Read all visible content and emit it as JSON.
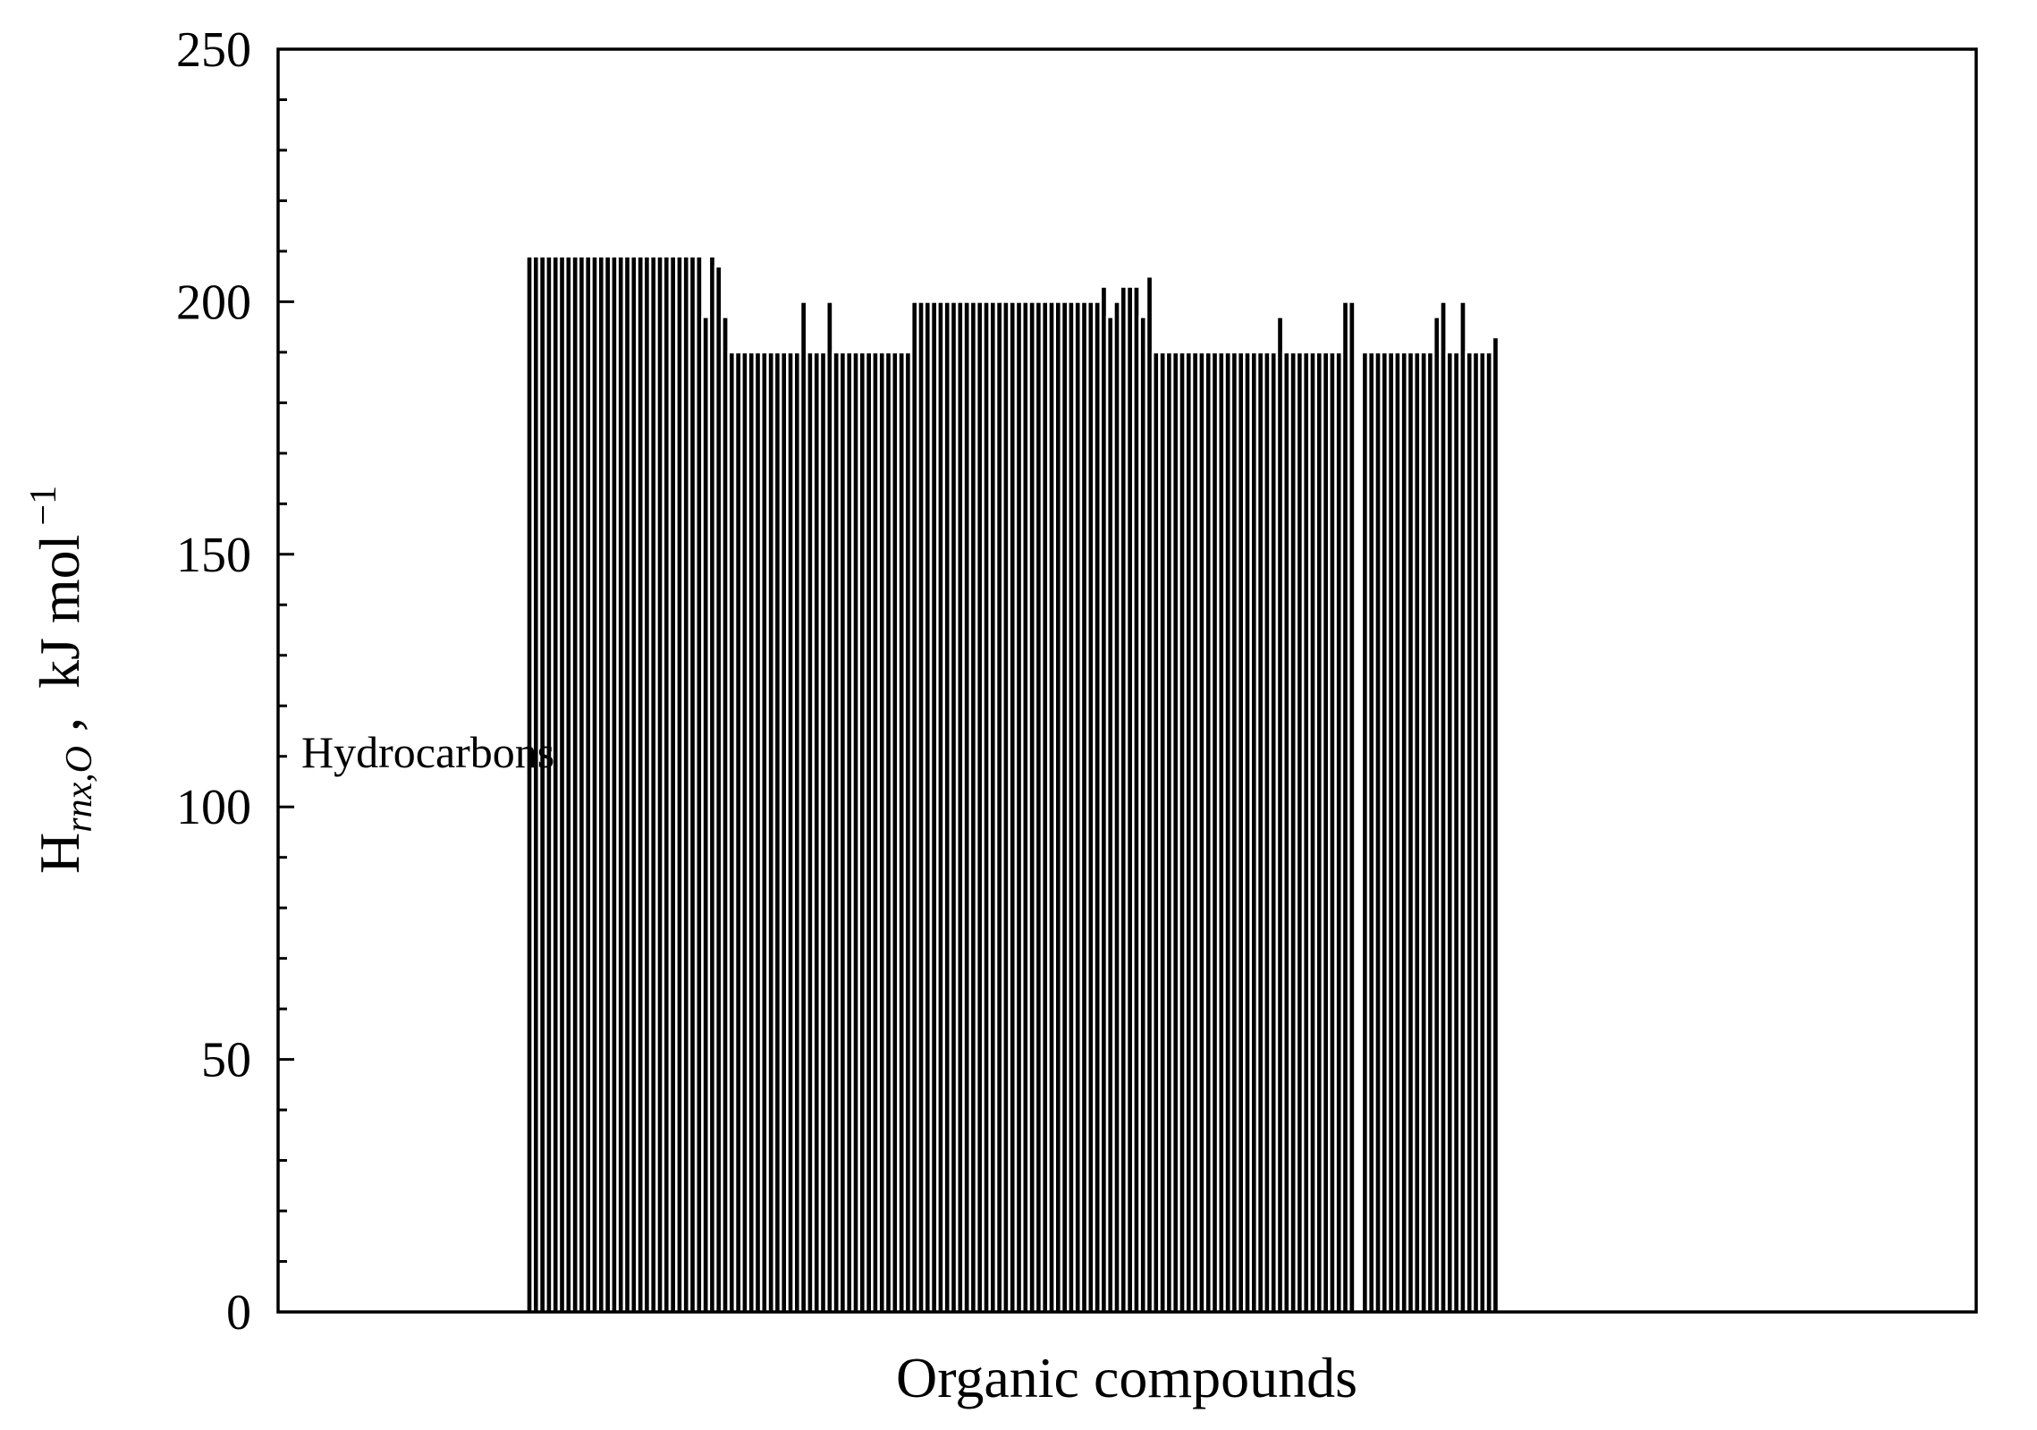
{
  "chart_data": {
    "type": "bar",
    "title": "",
    "xlabel": "Organic compounds",
    "ylabel": {
      "base": "H",
      "subscript": "rnx,O",
      "separator": " ,  ",
      "unit": "kJ mol",
      "superscript": "−1"
    },
    "annotation": "Hydrocarbons",
    "ylim": [
      0,
      250
    ],
    "yticks": [
      "0",
      "50",
      "100",
      "150",
      "200",
      "250"
    ],
    "grid": false,
    "categories_shown": false,
    "leading_empty_slots": 38,
    "series": [
      {
        "values": [
          209,
          209,
          209,
          209,
          209,
          209,
          209,
          209,
          209,
          209,
          209,
          209,
          209,
          209,
          209,
          209,
          209,
          209,
          209,
          209,
          209,
          209,
          209,
          209,
          209,
          209,
          209,
          197,
          209,
          207,
          197,
          190,
          190,
          190,
          190,
          190,
          190,
          190,
          190,
          190,
          190,
          190,
          200,
          190,
          190,
          190,
          200,
          190,
          190,
          190,
          190,
          190,
          190,
          190,
          190,
          190,
          190,
          190,
          190,
          200,
          200,
          200,
          200,
          200,
          200,
          200,
          200,
          200,
          200,
          200,
          200,
          200,
          200,
          200,
          200,
          200,
          200,
          200,
          200,
          200,
          200,
          200,
          200,
          200,
          200,
          200,
          200,
          200,
          203,
          197,
          200,
          203,
          203,
          203,
          197,
          205,
          190,
          190,
          190,
          190,
          190,
          190,
          190,
          190,
          190,
          190,
          190,
          190,
          190,
          190,
          190,
          190,
          190,
          190,
          190,
          197,
          190,
          190,
          190,
          190,
          190,
          190,
          190,
          190,
          190,
          200,
          200,
          null,
          190,
          190,
          190,
          190,
          190,
          190,
          190,
          190,
          190,
          190,
          190,
          197,
          200,
          190,
          190,
          200,
          190,
          190,
          190,
          190,
          193
        ]
      }
    ]
  }
}
